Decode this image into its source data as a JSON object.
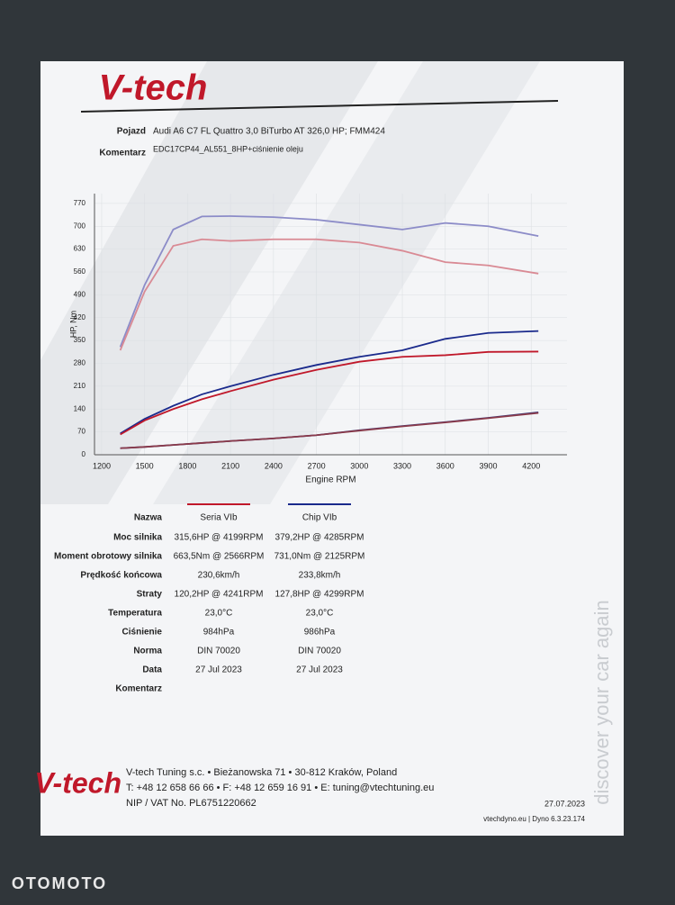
{
  "header": {
    "logo": "V-tech",
    "vehicle_label": "Pojazd",
    "vehicle": "Audi A6 C7 FL Quattro 3,0 BiTurbo AT 326,0 HP; FMM424",
    "comment_label": "Komentarz",
    "comment": "EDC17CP44_AL551_8HP+ciśnienie oleju"
  },
  "chart_data": {
    "type": "line",
    "xlabel": "Engine RPM",
    "ylabel": "HP, Nm",
    "grid": true,
    "xlim": [
      1150,
      4450
    ],
    "ylim": [
      0,
      800
    ],
    "xticks": [
      1200,
      1500,
      1800,
      2100,
      2400,
      2700,
      3000,
      3300,
      3600,
      3900,
      4200
    ],
    "yticks": [
      0,
      70,
      140,
      210,
      280,
      350,
      420,
      490,
      560,
      630,
      700,
      770
    ],
    "x": [
      1330,
      1500,
      1700,
      1900,
      2100,
      2400,
      2700,
      3000,
      3300,
      3600,
      3900,
      4250
    ],
    "series": [
      {
        "name": "Chip VIb",
        "color": "#8c8cc8",
        "values": [
          330,
          520,
          690,
          730,
          731,
          728,
          720,
          705,
          690,
          710,
          700,
          670
        ]
      },
      {
        "name": "Seria VIb",
        "color": "#d98a94",
        "values": [
          320,
          500,
          640,
          660,
          655,
          660,
          660,
          650,
          625,
          590,
          580,
          555
        ]
      },
      {
        "name": "Chip VIb",
        "color": "#1a2a8c",
        "values": [
          65,
          110,
          150,
          185,
          210,
          245,
          275,
          300,
          320,
          355,
          373,
          379
        ]
      },
      {
        "name": "Seria VIb",
        "color": "#c0182a",
        "values": [
          62,
          105,
          140,
          170,
          195,
          230,
          260,
          285,
          300,
          305,
          315,
          316
        ]
      },
      {
        "name": "Chip VIb",
        "color": "#3a3a7a",
        "values": [
          20,
          24,
          30,
          36,
          42,
          50,
          60,
          75,
          88,
          100,
          113,
          130
        ]
      },
      {
        "name": "Seria VIb",
        "color": "#8a3a4a",
        "values": [
          20,
          24,
          30,
          36,
          42,
          50,
          60,
          74,
          87,
          99,
          112,
          128
        ]
      }
    ]
  },
  "table": {
    "name_label": "Nazwa",
    "rows": [
      [
        "Moc silnika",
        "315,6HP @ 4199RPM",
        "379,2HP @ 4285RPM"
      ],
      [
        "Moment obrotowy silnika",
        "663,5Nm @ 2566RPM",
        "731,0Nm @ 2125RPM"
      ],
      [
        "Prędkość końcowa",
        "230,6km/h",
        "233,8km/h"
      ],
      [
        "Straty",
        "120,2HP @ 4241RPM",
        "127,8HP @ 4299RPM"
      ],
      [
        "Temperatura",
        "23,0°C",
        "23,0°C"
      ],
      [
        "Ciśnienie",
        "984hPa",
        "986hPa"
      ],
      [
        "Norma",
        "DIN 70020",
        "DIN 70020"
      ],
      [
        "Data",
        "27 Jul 2023",
        "27 Jul 2023"
      ],
      [
        "Komentarz"
      ]
    ]
  },
  "footer": {
    "logo": "V-tech",
    "line1": "V-tech Tuning s.c. • Bieżanowska 71 • 30-812 Kraków, Poland",
    "line2": "T: +48 12 658 66 66 • F: +48 12 659 16 91 • E: tuning@vtechtuning.eu",
    "line3": "NIP / VAT No. PL6751220662",
    "date": "27.07.2023",
    "site": "vtechdyno.eu | Dyno 6.3.23.174",
    "slogan": "discover your car again"
  },
  "watermark": "OTOMOTO"
}
